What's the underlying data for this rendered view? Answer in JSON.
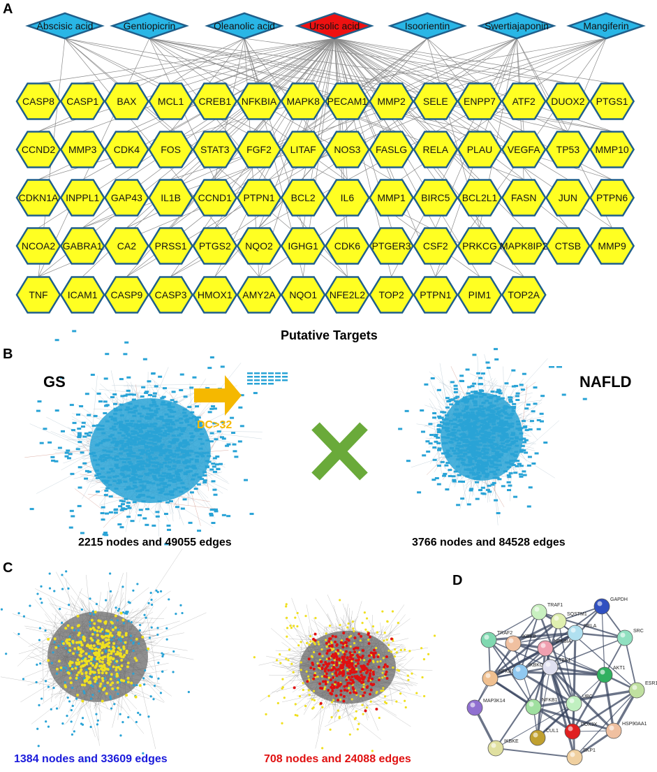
{
  "panels": {
    "a": "A",
    "b": "B",
    "c": "C",
    "d": "D"
  },
  "panel_a": {
    "compounds": [
      {
        "name": "Abscisic acid",
        "color": "#29b6e6"
      },
      {
        "name": "Gentiopicrin",
        "color": "#29b6e6"
      },
      {
        "name": "Oleanolic acid",
        "color": "#29b6e6"
      },
      {
        "name": "Ursolic acid",
        "color": "#ee1111"
      },
      {
        "name": "Isoorientin",
        "color": "#29b6e6"
      },
      {
        "name": "Swertiajaponin",
        "color": "#29b6e6"
      },
      {
        "name": "Mangiferin",
        "color": "#29b6e6"
      }
    ],
    "targets": [
      [
        "CASP8",
        "CASP1",
        "BAX",
        "MCL1",
        "CREB1",
        "NFKBIA",
        "MAPK8",
        "PECAM1",
        "MMP2",
        "SELE",
        "ENPP7",
        "ATF2",
        "DUOX2",
        "PTGS1"
      ],
      [
        "CCND2",
        "MMP3",
        "CDK4",
        "FOS",
        "STAT3",
        "FGF2",
        "LITAF",
        "NOS3",
        "FASLG",
        "RELA",
        "PLAU",
        "VEGFA",
        "TP53",
        "MMP10"
      ],
      [
        "CDKN1A",
        "INPPL1",
        "GAP43",
        "IL1B",
        "CCND1",
        "PTPN1",
        "BCL2",
        "IL6",
        "MMP1",
        "BIRC5",
        "BCL2L1",
        "FASN",
        "JUN",
        "PTPN6"
      ],
      [
        "NCOA2",
        "GABRA1",
        "CA2",
        "PRSS1",
        "PTGS2",
        "NQO2",
        "IGHG1",
        "CDK6",
        "PTGER3",
        "CSF2",
        "PRKCG",
        "MAPK8IP2",
        "CTSB",
        "MMP9"
      ],
      [
        "TNF",
        "ICAM1",
        "CASP9",
        "CASP3",
        "HMOX1",
        "AMY2A",
        "NQO1",
        "NFE2L2",
        "TOP2",
        "PTPN1",
        "PIM1",
        "TOP2A"
      ]
    ],
    "target_color": "#ffff22",
    "target_stroke": "#1f5f8b",
    "caption": "Putative Targets"
  },
  "panel_b": {
    "left_label": "GS",
    "right_label": "NAFLD",
    "left_caption": "2215 nodes and 49055 edges",
    "right_caption": "3766 nodes and 84528 edges",
    "node_color": "#29a3d6",
    "cross_color": "#6aaa3a"
  },
  "panel_c": {
    "arrow_label": "DC>32",
    "arrow_color": "#f5b800",
    "left_caption": "1384 nodes and 33609 edges",
    "left_caption_color": "#1a1adb",
    "right_caption": "708 nodes and 24088 edges",
    "right_caption_color": "#e01010"
  },
  "panel_d": {
    "nodes": [
      {
        "label": "TRAF1",
        "color": "#c9f0c0"
      },
      {
        "label": "SQSTM1",
        "color": "#e0f0b0"
      },
      {
        "label": "GAPDH",
        "color": "#3050c0"
      },
      {
        "label": "TRAF2",
        "color": "#80d8b0"
      },
      {
        "label": "IKBKB",
        "color": "#f0c0a0"
      },
      {
        "label": "NFKBIA",
        "color": "#f0a0b0"
      },
      {
        "label": "RELA",
        "color": "#b0e0f0"
      },
      {
        "label": "SRC",
        "color": "#90e0c0"
      },
      {
        "label": "NFKB2",
        "color": "#f0c090"
      },
      {
        "label": "IKBKG",
        "color": "#90c8f0"
      },
      {
        "label": "TBK1",
        "color": "#e0e0f0"
      },
      {
        "label": "AKT1",
        "color": "#30b060"
      },
      {
        "label": "ESR1",
        "color": "#c0e0a0"
      },
      {
        "label": "MAP3K14",
        "color": "#9070d0"
      },
      {
        "label": "NFKB1",
        "color": "#a0e0a0"
      },
      {
        "label": "UBC",
        "color": "#c0f0c0"
      },
      {
        "label": "DDX3X",
        "color": "#e02020"
      },
      {
        "label": "HSP90AA1",
        "color": "#f0c0a0"
      },
      {
        "label": "CUL1",
        "color": "#c0a030"
      },
      {
        "label": "IKBKE",
        "color": "#e0e0a0"
      },
      {
        "label": "SKP1",
        "color": "#f0d0a0"
      }
    ]
  }
}
